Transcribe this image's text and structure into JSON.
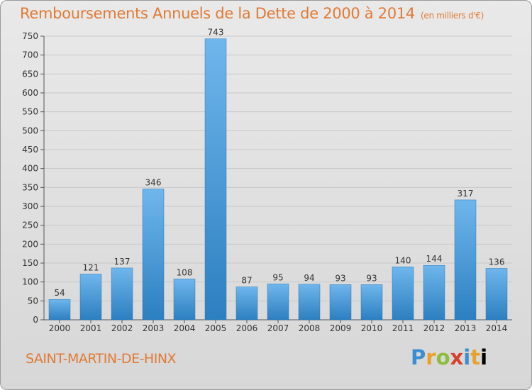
{
  "title": "Remboursements Annuels de la Dette de 2000 à 2014",
  "unit": "(en milliers d'€)",
  "commune": "SAINT-MARTIN-DE-HINX",
  "logo": [
    "P",
    "r",
    "o",
    "x",
    "i",
    "t",
    "i"
  ],
  "colors": {
    "title": "#e07a35",
    "bar_light": "#6fb6ec",
    "bar_dark": "#2c7fc0",
    "grid": "#c8c8c8"
  },
  "chart_data": {
    "type": "bar",
    "title": "Remboursements Annuels de la Dette de 2000 à 2014",
    "xlabel": "",
    "ylabel": "",
    "categories": [
      "2000",
      "2001",
      "2002",
      "2003",
      "2004",
      "2005",
      "2006",
      "2007",
      "2008",
      "2009",
      "2010",
      "2011",
      "2012",
      "2013",
      "2014"
    ],
    "values": [
      54,
      121,
      137,
      346,
      108,
      743,
      87,
      95,
      94,
      93,
      93,
      140,
      144,
      317,
      136
    ],
    "ylim": [
      0,
      750
    ],
    "yticks": [
      0,
      50,
      100,
      150,
      200,
      250,
      300,
      350,
      400,
      450,
      500,
      550,
      600,
      650,
      700,
      750
    ],
    "grid": true,
    "data_labels": true
  }
}
